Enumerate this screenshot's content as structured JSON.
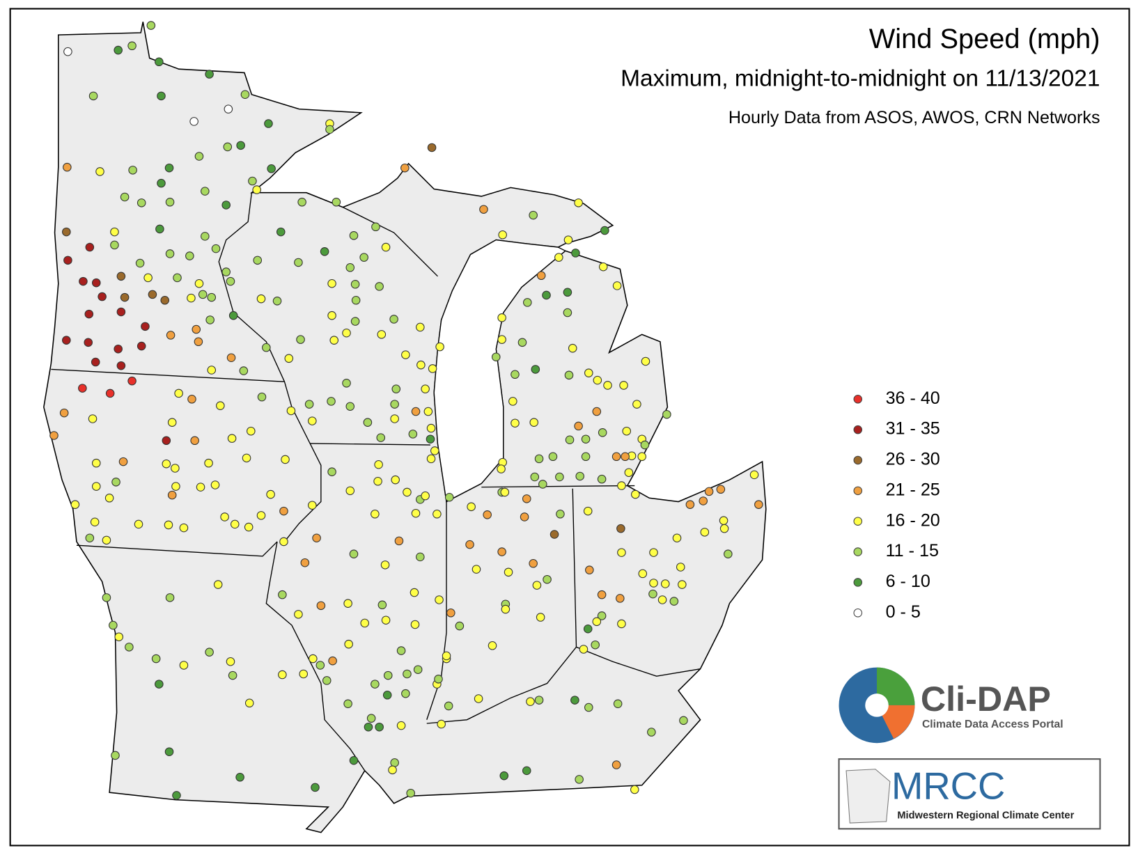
{
  "header": {
    "title": "Wind Speed (mph)",
    "subtitle": "Maximum, midnight-to-midnight on 11/13/2021",
    "source": "Hourly Data from ASOS, AWOS, CRN Networks"
  },
  "legend": {
    "items": [
      {
        "label": "36 - 40",
        "color": "#e8302a"
      },
      {
        "label": "31 - 35",
        "color": "#a8201e"
      },
      {
        "label": "26 - 30",
        "color": "#9a6a2c"
      },
      {
        "label": "21 - 25",
        "color": "#f0a040"
      },
      {
        "label": "16 - 20",
        "color": "#ffff48"
      },
      {
        "label": "11 - 15",
        "color": "#a8d860"
      },
      {
        "label": "6 - 10",
        "color": "#4c9a3c"
      },
      {
        "label": "0 - 5",
        "color": "#ffffff"
      }
    ]
  },
  "logos": {
    "clidap": "Cli-DAP",
    "clidap_sub": "Climate Data Access Portal",
    "mrcc": "MRCC",
    "mrcc_sub": "Midwestern Regional Climate Center"
  }
}
